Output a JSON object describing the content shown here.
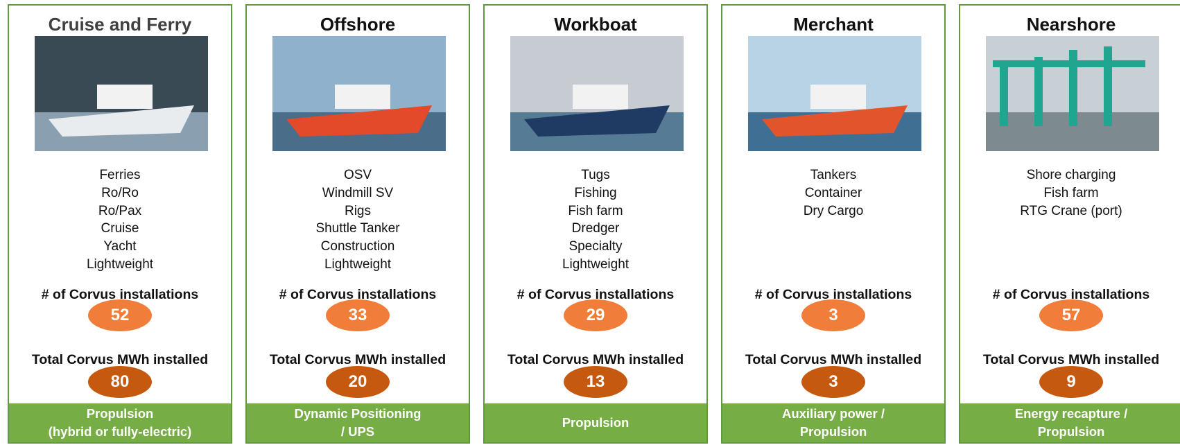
{
  "segments": [
    {
      "title": "Cruise and Ferry",
      "items": [
        "Ferries",
        "Ro/Ro",
        "Ro/Pax",
        "Cruise",
        "Yacht",
        "Lightweight"
      ],
      "installations_label": "# of Corvus installations",
      "installations": 52,
      "mwh_label": "Total Corvus MWh installed",
      "mwh": 80,
      "footer": [
        "Propulsion",
        "(hybrid or fully-electric)"
      ]
    },
    {
      "title": "Offshore",
      "items": [
        "OSV",
        "Windmill SV",
        "Rigs",
        "Shuttle Tanker",
        "Construction",
        "Lightweight"
      ],
      "installations_label": "# of Corvus installations",
      "installations": 33,
      "mwh_label": "Total Corvus MWh installed",
      "mwh": 20,
      "footer": [
        "Dynamic Positioning",
        "/ UPS"
      ]
    },
    {
      "title": "Workboat",
      "items": [
        "Tugs",
        "Fishing",
        "Fish farm",
        "Dredger",
        "Specialty",
        "Lightweight"
      ],
      "installations_label": "# of Corvus installations",
      "installations": 29,
      "mwh_label": "Total Corvus MWh installed",
      "mwh": 13,
      "footer": [
        "Propulsion"
      ]
    },
    {
      "title": "Merchant",
      "items": [
        "Tankers",
        "Container",
        "Dry Cargo"
      ],
      "installations_label": "# of Corvus installations",
      "installations": 3,
      "mwh_label": "Total Corvus MWh installed",
      "mwh": 3,
      "footer": [
        "Auxiliary power /",
        "Propulsion"
      ]
    },
    {
      "title": "Nearshore",
      "items": [
        "Shore charging",
        "Fish farm",
        "RTG Crane (port)"
      ],
      "installations_label": "# of Corvus installations",
      "installations": 57,
      "mwh_label": "Total Corvus MWh installed",
      "mwh": 9,
      "footer": [
        "Energy recapture /",
        "Propulsion"
      ]
    }
  ]
}
